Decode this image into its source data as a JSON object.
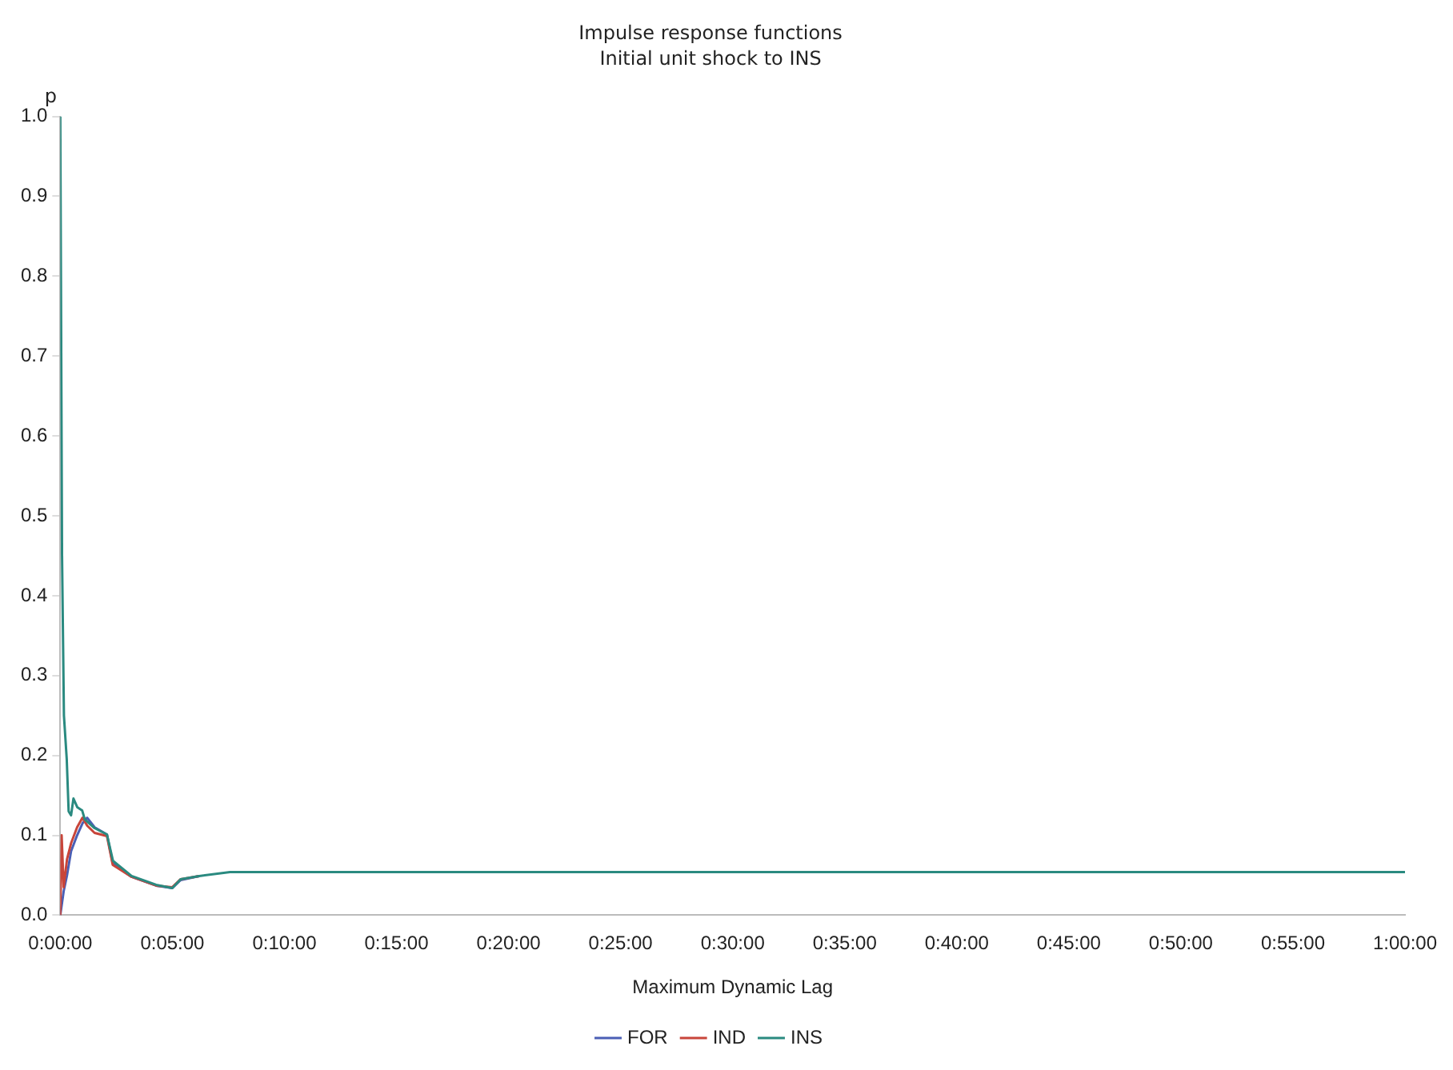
{
  "chart_data": {
    "type": "line",
    "title": "Impulse response functions",
    "subtitle": "Initial unit shock to INS",
    "xlabel": "Maximum Dynamic Lag",
    "ylabel": "p",
    "xlim": [
      0,
      1
    ],
    "ylim": [
      0,
      1
    ],
    "xticks": [
      {
        "value": 0,
        "label": "0:00:00"
      },
      {
        "value": 0.083333,
        "label": "0:05:00"
      },
      {
        "value": 0.166667,
        "label": "0:10:00"
      },
      {
        "value": 0.25,
        "label": "0:15:00"
      },
      {
        "value": 0.333333,
        "label": "0:20:00"
      },
      {
        "value": 0.416667,
        "label": "0:25:00"
      },
      {
        "value": 0.5,
        "label": "0:30:00"
      },
      {
        "value": 0.583333,
        "label": "0:35:00"
      },
      {
        "value": 0.666667,
        "label": "0:40:00"
      },
      {
        "value": 0.75,
        "label": "0:45:00"
      },
      {
        "value": 0.833333,
        "label": "0:50:00"
      },
      {
        "value": 0.916667,
        "label": "0:55:00"
      },
      {
        "value": 1,
        "label": "1:00:00"
      }
    ],
    "yticks": [
      {
        "value": 0,
        "label": "0.0"
      },
      {
        "value": 0.1,
        "label": "0.1"
      },
      {
        "value": 0.2,
        "label": "0.2"
      },
      {
        "value": 0.3,
        "label": "0.3"
      },
      {
        "value": 0.4,
        "label": "0.4"
      },
      {
        "value": 0.5,
        "label": "0.5"
      },
      {
        "value": 0.6,
        "label": "0.6"
      },
      {
        "value": 0.7,
        "label": "0.7"
      },
      {
        "value": 0.8,
        "label": "0.8"
      },
      {
        "value": 0.9,
        "label": "0.9"
      },
      {
        "value": 1,
        "label": "1.0"
      }
    ],
    "grid": false,
    "legend": "bottom",
    "marker": "none",
    "line_style": "solid",
    "series": [
      {
        "name": "FOR",
        "color": "#4a5fb5",
        "x": [
          0,
          0.0025,
          0.005,
          0.008,
          0.0125,
          0.0165,
          0.02,
          0.0255,
          0.0347,
          0.039,
          0.053,
          0.0713,
          0.0833,
          0.0895,
          0.1033
        ],
        "values": [
          0,
          0.03,
          0.05,
          0.08,
          0.1,
          0.115,
          0.122,
          0.11,
          0.101,
          0.065,
          0.048,
          0.037,
          0.034,
          0.044,
          0.049
        ]
      },
      {
        "name": "IND",
        "color": "#c8453a",
        "x": [
          0,
          0.001,
          0.0025,
          0.005,
          0.008,
          0.0125,
          0.0165,
          0.02,
          0.0255,
          0.0347,
          0.039,
          0.053,
          0.0713,
          0.0833,
          0.0895,
          0.1033
        ],
        "values": [
          0,
          0.1,
          0.035,
          0.07,
          0.09,
          0.11,
          0.122,
          0.112,
          0.103,
          0.099,
          0.063,
          0.048,
          0.037,
          0.035,
          0.045,
          0.049
        ]
      },
      {
        "name": "INS",
        "color": "#2a8a80",
        "x": [
          0,
          0.0013,
          0.0027,
          0.0048,
          0.0062,
          0.008,
          0.0098,
          0.0127,
          0.0163,
          0.0182,
          0.0255,
          0.0347,
          0.0392,
          0.053,
          0.0713,
          0.0833,
          0.0895,
          0.1033,
          0.1262,
          1
        ],
        "values": [
          1,
          0.45,
          0.25,
          0.195,
          0.13,
          0.125,
          0.146,
          0.135,
          0.131,
          0.12,
          0.109,
          0.101,
          0.068,
          0.049,
          0.038,
          0.034,
          0.045,
          0.049,
          0.054,
          0.054
        ]
      }
    ]
  }
}
